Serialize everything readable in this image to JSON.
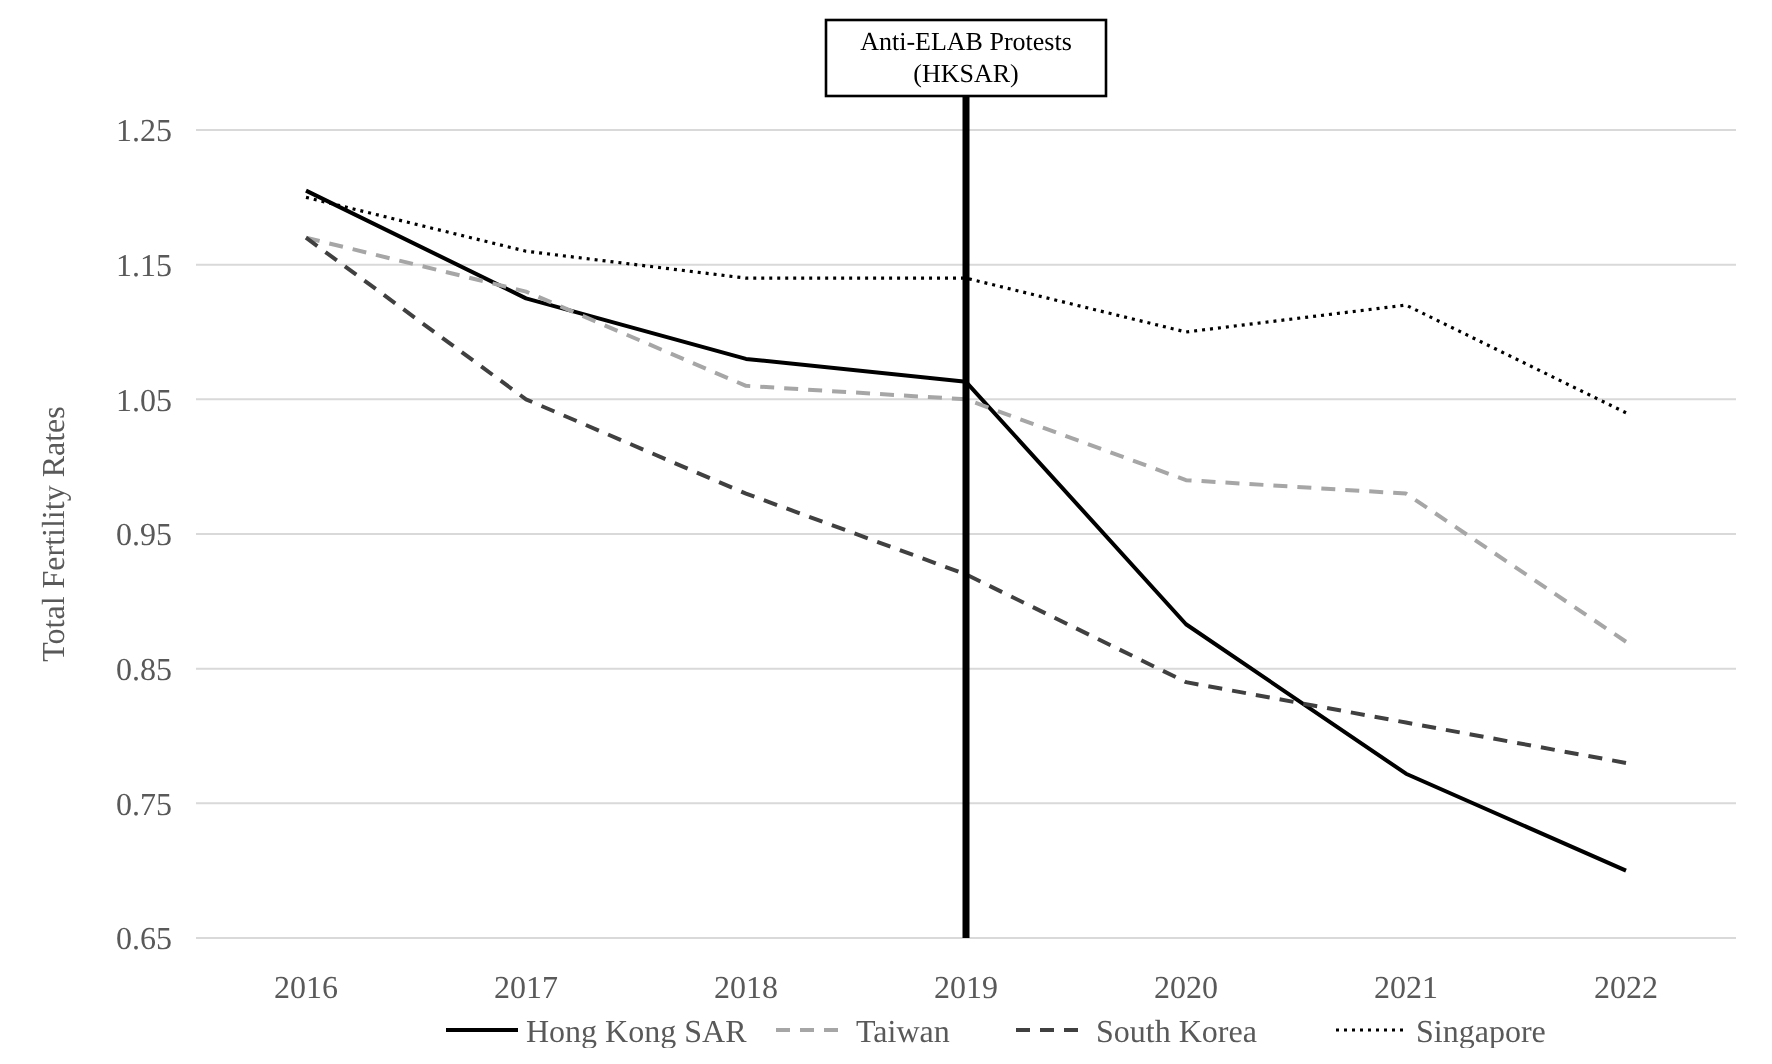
{
  "chart_data": {
    "type": "line",
    "ylabel": "Total Fertility Rates",
    "categories": [
      "2016",
      "2017",
      "2018",
      "2019",
      "2020",
      "2021",
      "2022"
    ],
    "series": [
      {
        "name": "Hong Kong SAR",
        "color": "#000000",
        "line_style": "solid",
        "values": [
          1.205,
          1.125,
          1.08,
          1.063,
          0.883,
          0.772,
          0.7
        ]
      },
      {
        "name": "Taiwan",
        "color": "#a6a6a6",
        "line_style": "dashed",
        "values": [
          1.17,
          1.13,
          1.06,
          1.05,
          0.99,
          0.98,
          0.87
        ]
      },
      {
        "name": "South Korea",
        "color": "#404040",
        "line_style": "dashed",
        "values": [
          1.17,
          1.05,
          0.98,
          0.92,
          0.84,
          0.81,
          0.78
        ]
      },
      {
        "name": "Singapore",
        "color": "#000000",
        "line_style": "dotted",
        "values": [
          1.2,
          1.16,
          1.14,
          1.14,
          1.1,
          1.12,
          1.04
        ]
      }
    ],
    "ylim": [
      0.65,
      1.25
    ],
    "yticks": [
      0.65,
      0.75,
      0.85,
      0.95,
      1.05,
      1.15,
      1.25
    ],
    "grid": "y",
    "legend": "bottom",
    "marker": "none",
    "ref_lines": [
      {
        "axis": "x",
        "value": "2019",
        "label": "Anti-ELAB Protests\n(HKSAR)",
        "color": "#000000"
      }
    ]
  }
}
